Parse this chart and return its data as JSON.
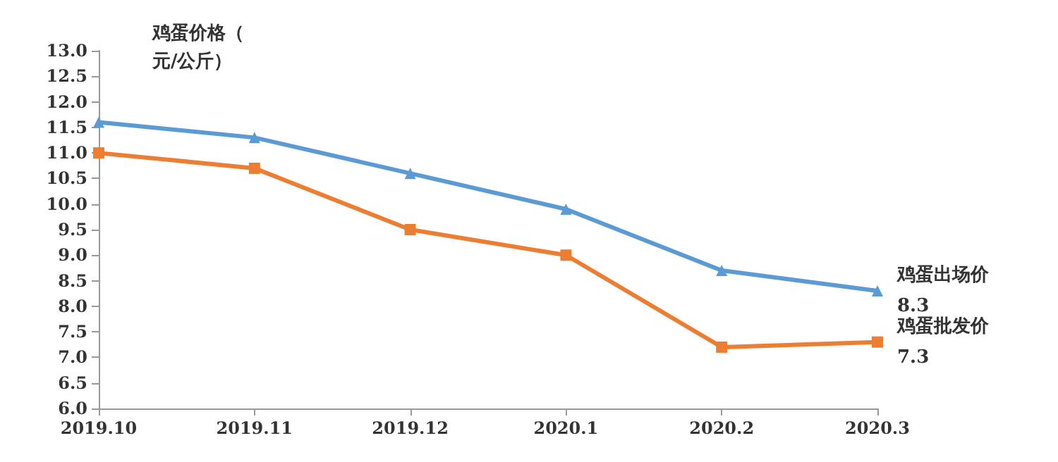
{
  "chart_data": {
    "type": "line",
    "ylabel": "鸡蛋价格（元/公斤）",
    "categories": [
      "2019.10",
      "2019.11",
      "2019.12",
      "2020.1",
      "2020.2",
      "2020.3"
    ],
    "series": [
      {
        "name": "鸡蛋出场价",
        "color": "#5b9bd5",
        "marker": "triangle",
        "values": [
          11.6,
          11.3,
          10.6,
          9.9,
          8.7,
          8.3
        ],
        "value_labels": [
          null,
          null,
          null,
          null,
          null,
          "8.3"
        ]
      },
      {
        "name": "鸡蛋批发价",
        "color": "#ed7d31",
        "marker": "square",
        "values": [
          11.0,
          10.7,
          9.5,
          9.0,
          7.2,
          7.3
        ],
        "value_labels": [
          null,
          null,
          null,
          null,
          null,
          "7.3"
        ]
      }
    ],
    "ylim": [
      6.0,
      13.0
    ],
    "yticks": [
      {
        "value": 6,
        "label": "6.0"
      },
      6.5,
      {
        "value": 7,
        "label": "7.0"
      },
      7.5,
      {
        "value": 8,
        "label": "8.0"
      },
      8.5,
      {
        "value": 9,
        "label": "9.0"
      },
      9.5,
      {
        "value": 10,
        "label": "10.0"
      },
      10.5,
      {
        "value": 11,
        "label": "11.0"
      },
      11.5,
      {
        "value": 12,
        "label": "12.0"
      },
      12.5,
      {
        "value": 13,
        "label": "13.0"
      }
    ],
    "grid": false,
    "legend": false,
    "line_style": "solid"
  }
}
